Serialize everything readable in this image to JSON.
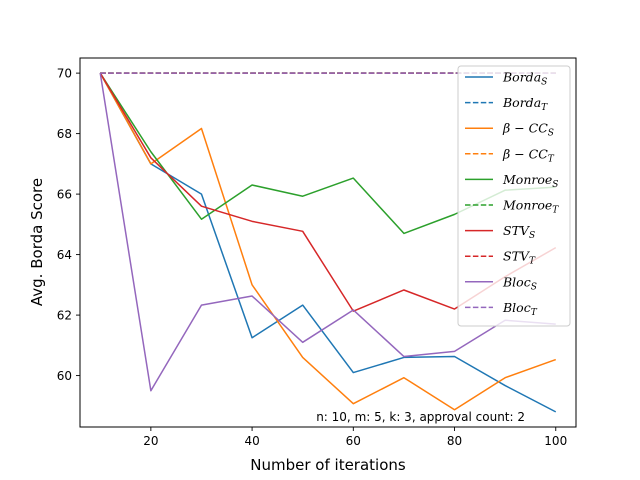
{
  "chart_data": {
    "type": "line",
    "xlabel": "Number of iterations",
    "ylabel": "Avg. Borda Score",
    "xlim": [
      6,
      104
    ],
    "ylim": [
      58.3,
      70.5
    ],
    "xticks": [
      20,
      40,
      60,
      80,
      100
    ],
    "yticks": [
      60,
      62,
      64,
      66,
      68,
      70
    ],
    "x": [
      10,
      20,
      30,
      40,
      50,
      60,
      70,
      80,
      90,
      100
    ],
    "annotation": "n: 10, m: 5, k: 3, approval count: 2",
    "grid": false,
    "legend_position": "top-right",
    "series": [
      {
        "base": "Borda",
        "sub": "S",
        "color": "#1f77b4",
        "dash": "solid",
        "values": [
          70,
          67.0,
          66.0,
          61.25,
          62.33,
          60.1,
          60.6,
          60.63,
          59.67,
          58.8
        ]
      },
      {
        "base": "Borda",
        "sub": "T",
        "color": "#1f77b4",
        "dash": "dashed",
        "values": [
          70,
          70,
          70,
          70,
          70,
          70,
          70,
          70,
          70,
          70
        ]
      },
      {
        "base": "β − CC",
        "sub": "S",
        "color": "#ff7f0e",
        "dash": "solid",
        "values": [
          70,
          67.0,
          68.17,
          63.0,
          60.6,
          59.07,
          59.93,
          58.87,
          59.93,
          60.53
        ]
      },
      {
        "base": "β − CC",
        "sub": "T",
        "color": "#ff7f0e",
        "dash": "dashed",
        "values": [
          70,
          70,
          70,
          70,
          70,
          70,
          70,
          70,
          70,
          70
        ]
      },
      {
        "base": "Monroe",
        "sub": "S",
        "color": "#2ca02c",
        "dash": "solid",
        "values": [
          70,
          67.4,
          65.17,
          66.3,
          65.93,
          66.53,
          64.7,
          65.33,
          66.13,
          66.23
        ]
      },
      {
        "base": "Monroe",
        "sub": "T",
        "color": "#2ca02c",
        "dash": "dashed",
        "values": [
          70,
          70,
          70,
          70,
          70,
          70,
          70,
          70,
          70,
          70
        ]
      },
      {
        "base": "STV",
        "sub": "S",
        "color": "#d62728",
        "dash": "solid",
        "values": [
          70,
          67.2,
          65.6,
          65.1,
          64.77,
          62.13,
          62.83,
          62.2,
          63.27,
          64.23
        ]
      },
      {
        "base": "STV",
        "sub": "T",
        "color": "#d62728",
        "dash": "dashed",
        "values": [
          70,
          70,
          70,
          70,
          70,
          70,
          70,
          70,
          70,
          70
        ]
      },
      {
        "base": "Bloc",
        "sub": "S",
        "color": "#9467bd",
        "dash": "solid",
        "values": [
          70,
          59.5,
          62.33,
          62.63,
          61.1,
          62.17,
          60.63,
          60.8,
          61.83,
          61.7
        ]
      },
      {
        "base": "Bloc",
        "sub": "T",
        "color": "#9467bd",
        "dash": "dashed",
        "values": [
          70,
          70,
          70,
          70,
          70,
          70,
          70,
          70,
          70,
          70
        ]
      }
    ]
  }
}
